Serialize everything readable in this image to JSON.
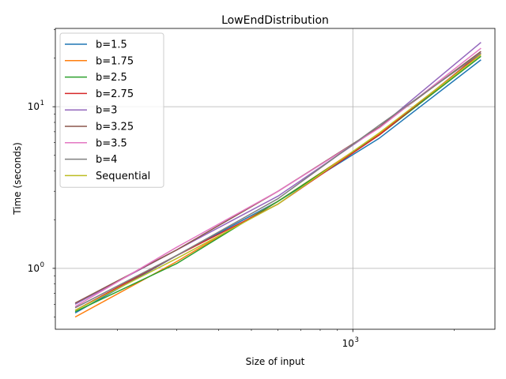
{
  "chart_data": {
    "type": "line",
    "title": "LowEndDistribution",
    "xlabel": "Size of input",
    "ylabel": "Time (seconds)",
    "xscale": "log",
    "yscale": "log",
    "xlim": [
      131,
      2640
    ],
    "ylim": [
      0.42,
      30.5
    ],
    "x": [
      150,
      300,
      600,
      1200,
      2400
    ],
    "x_ticks": [
      {
        "base": "10",
        "exp": "3",
        "value": 1000
      }
    ],
    "y_ticks": [
      {
        "label": "10",
        "exp": "0",
        "value": 1
      },
      {
        "label": "10",
        "exp": "1",
        "value": 10
      }
    ],
    "grid": true,
    "legend_position": "upper-left",
    "series": [
      {
        "name": "b=1.5",
        "color": "#1f77b4",
        "values": [
          0.53,
          1.2,
          2.6,
          6.4,
          19.5
        ]
      },
      {
        "name": "b=1.75",
        "color": "#ff7f0e",
        "values": [
          0.5,
          1.1,
          2.6,
          6.8,
          21.0
        ]
      },
      {
        "name": "b=2.5",
        "color": "#2ca02c",
        "values": [
          0.54,
          1.07,
          2.6,
          6.7,
          20.5
        ]
      },
      {
        "name": "b=2.75",
        "color": "#d62728",
        "values": [
          0.55,
          1.2,
          2.5,
          6.7,
          21.5
        ]
      },
      {
        "name": "b=3",
        "color": "#9467bd",
        "values": [
          0.6,
          1.3,
          2.8,
          7.5,
          25.0
        ]
      },
      {
        "name": "b=3.25",
        "color": "#8c564b",
        "values": [
          0.61,
          1.3,
          3.0,
          7.5,
          22.0
        ]
      },
      {
        "name": "b=3.5",
        "color": "#e377c2",
        "values": [
          0.58,
          1.35,
          3.0,
          7.4,
          23.0
        ]
      },
      {
        "name": "b=4",
        "color": "#7f7f7f",
        "values": [
          0.57,
          1.2,
          2.7,
          7.7,
          21.5
        ]
      },
      {
        "name": "Sequential",
        "color": "#bcbd22",
        "values": [
          0.55,
          1.15,
          2.5,
          6.9,
          21.0
        ]
      }
    ]
  }
}
